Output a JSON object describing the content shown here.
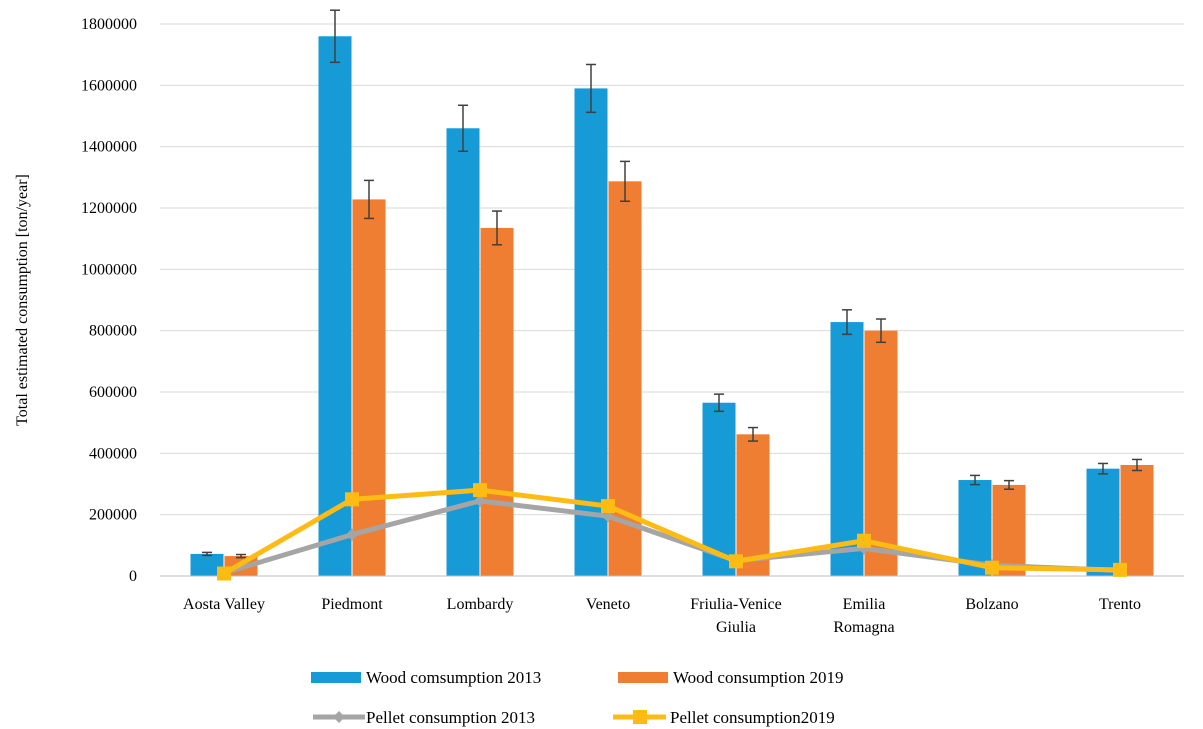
{
  "chart_data": {
    "type": "bar",
    "ylabel": "Total estimated  consumption [ton/year]",
    "ylim": [
      0,
      1800000
    ],
    "yticks": [
      "0",
      "200000",
      "400000",
      "600000",
      "800000",
      "1000000",
      "1200000",
      "1400000",
      "1600000",
      "1800000"
    ],
    "grid": true,
    "legend_position": "bottom",
    "categories": [
      [
        "Aosta Valley"
      ],
      [
        "Piedmont"
      ],
      [
        "Lombardy"
      ],
      [
        "Veneto"
      ],
      [
        "Friulia-Venice",
        "Giulia"
      ],
      [
        "Emilia",
        "Romagna"
      ],
      [
        "Bolzano"
      ],
      [
        "Trento"
      ]
    ],
    "bar_series": [
      {
        "name": "Wood  comsumption 2013",
        "color": "#179bd7",
        "values": [
          72000,
          1760000,
          1460000,
          1590000,
          565000,
          828000,
          313000,
          350000
        ],
        "errors": [
          5000,
          85000,
          75000,
          78000,
          28000,
          40000,
          15000,
          17000
        ]
      },
      {
        "name": "Wood consumption 2019",
        "color": "#f07e32",
        "values": [
          65000,
          1228000,
          1135000,
          1287000,
          462000,
          800000,
          297000,
          362000
        ],
        "errors": [
          5000,
          62000,
          55000,
          65000,
          22000,
          38000,
          14000,
          18000
        ]
      }
    ],
    "line_series": [
      {
        "name": "Pellet consumption 2013",
        "color": "#a5a5a5",
        "marker": "diamond",
        "values": [
          10000,
          135000,
          245000,
          195000,
          50000,
          90000,
          35000,
          18000
        ]
      },
      {
        "name": "Pellet consumption2019",
        "color": "#fdbb14",
        "marker": "square",
        "values": [
          8000,
          250000,
          280000,
          228000,
          48000,
          115000,
          27000,
          20000
        ]
      }
    ]
  }
}
